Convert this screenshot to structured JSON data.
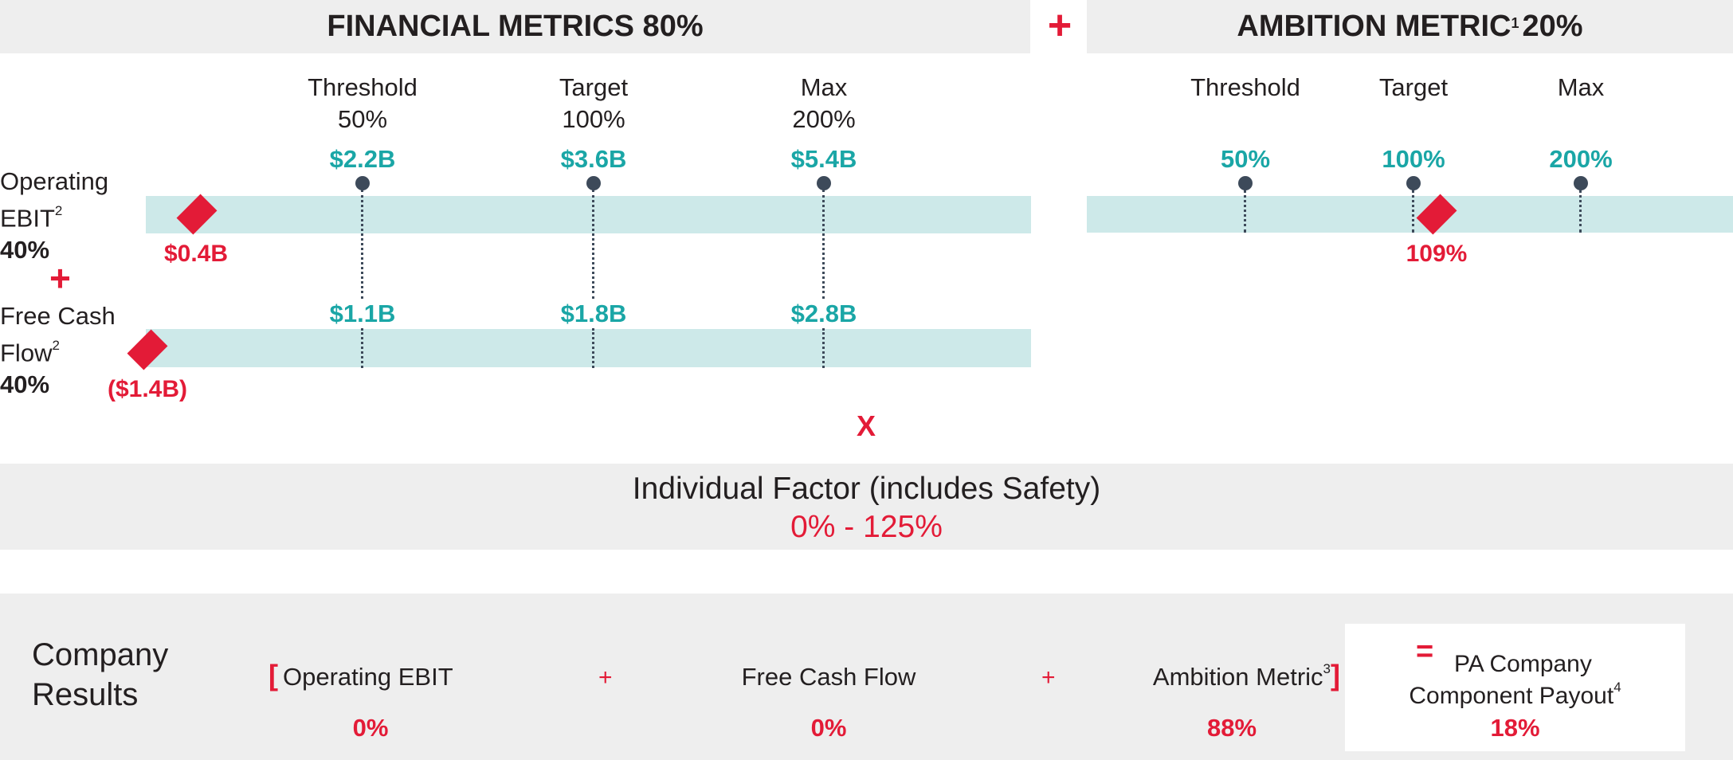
{
  "financial_header": {
    "title": "FINANCIAL METRICS 80%"
  },
  "header_plus": "+",
  "ambition_header": {
    "title_main": "AMBITION METRIC",
    "title_sup": "1",
    "title_pct": " 20%"
  },
  "financial": {
    "columns": [
      {
        "label": "Threshold",
        "payout": "50%"
      },
      {
        "label": "Target",
        "payout": "100%"
      },
      {
        "label": "Max",
        "payout": "200%"
      }
    ],
    "rows": [
      {
        "name_line1": "Operating",
        "name_line2": "EBIT",
        "name_sup": "2",
        "weight": "40%",
        "levels": [
          "$2.2B",
          "$3.6B",
          "$5.4B"
        ],
        "actual": "$0.4B"
      },
      {
        "name_line1": "Free Cash",
        "name_line2": "Flow",
        "name_sup": "2",
        "weight": "40%",
        "levels": [
          "$1.1B",
          "$1.8B",
          "$2.8B"
        ],
        "actual": "($1.4B)"
      }
    ],
    "row_plus": "+"
  },
  "ambition": {
    "columns": [
      {
        "label": "Threshold",
        "level": "50%"
      },
      {
        "label": "Target",
        "level": "100%"
      },
      {
        "label": "Max",
        "level": "200%"
      }
    ],
    "actual": "109%"
  },
  "times": "X",
  "individual_factor": {
    "title": "Individual Factor (includes Safety)",
    "range": "0% - 125%"
  },
  "company_results": {
    "label_line1": "Company",
    "label_line2": "Results",
    "open_bracket": "[",
    "close_bracket": "]",
    "plus": "+",
    "equals": "=",
    "items": [
      {
        "label": "Operating EBIT",
        "value": "0%"
      },
      {
        "label": "Free Cash Flow",
        "value": "0%"
      },
      {
        "label": "Ambition Metric",
        "sup": "3",
        "value": "88%"
      }
    ],
    "payout": {
      "line1": "PA Company",
      "line2": "Component Payout",
      "sup": "4",
      "value": "18%"
    }
  },
  "colors": {
    "accent_red": "#e31b37",
    "teal": "#1aa6a6",
    "band": "#cde9e9",
    "panel": "#eeeeee",
    "marker": "#3d4a5a"
  }
}
